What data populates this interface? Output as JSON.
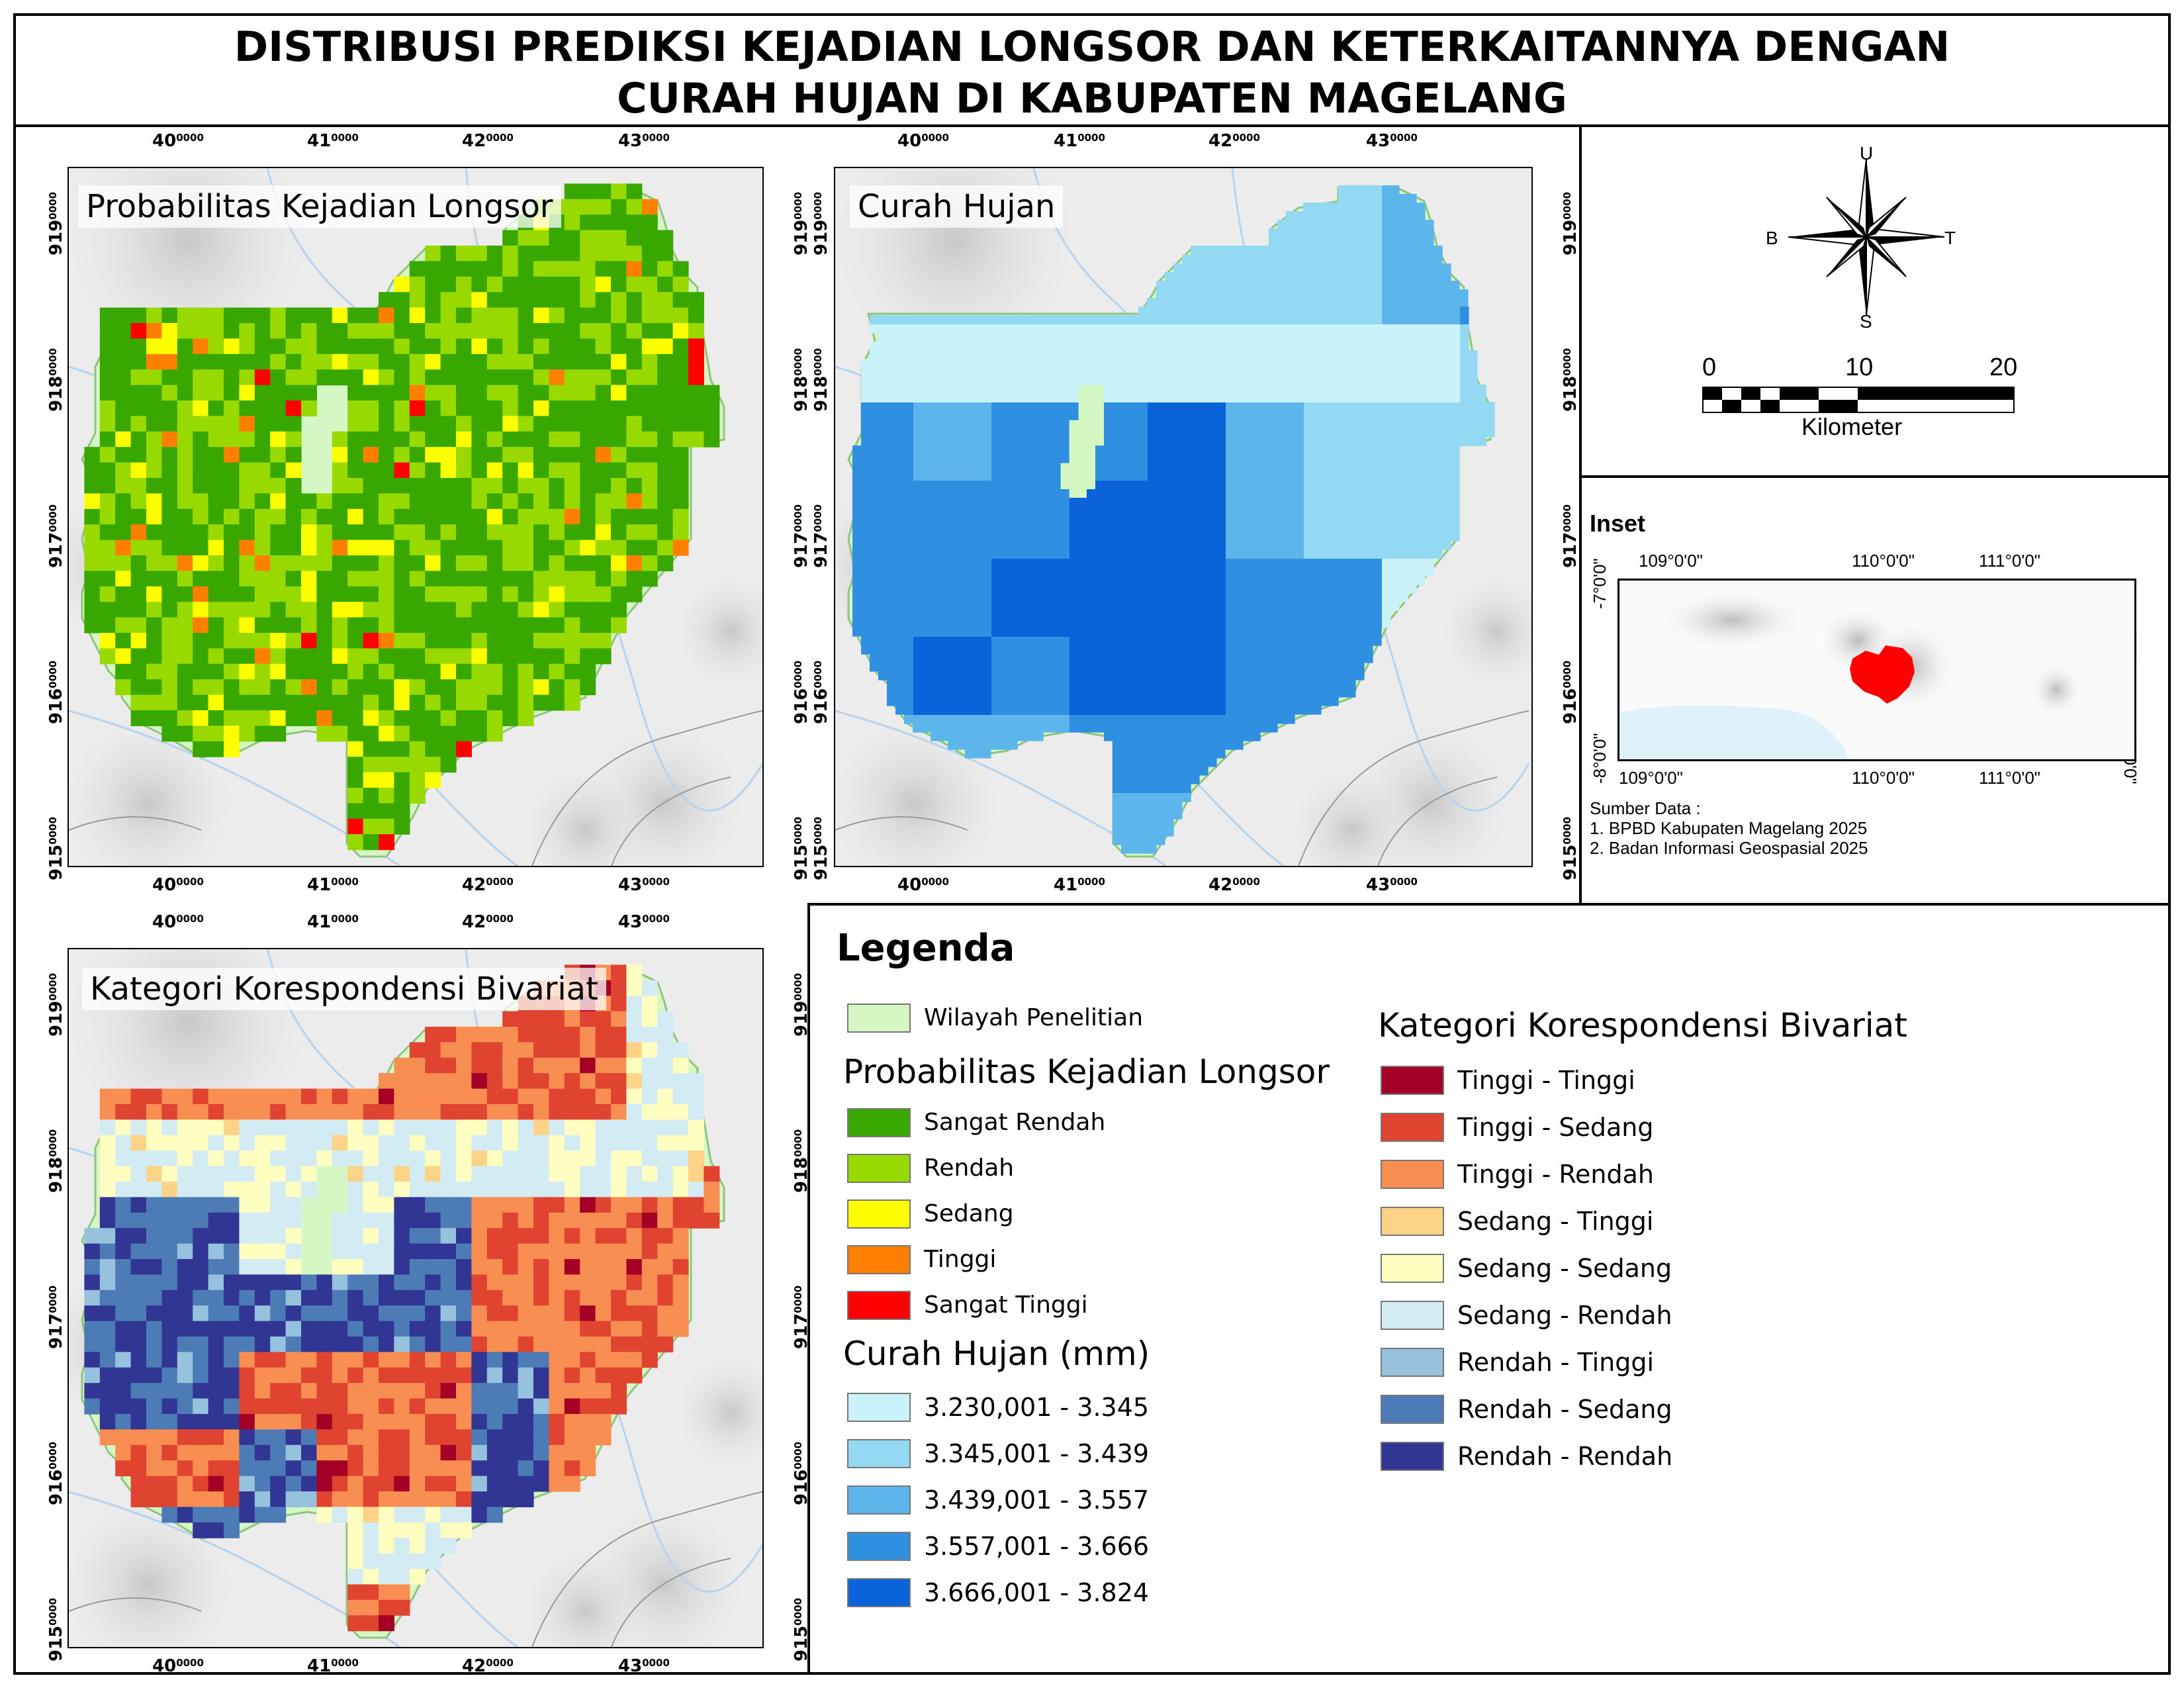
{
  "title": {
    "line1": "DISTRIBUSI PREDIKSI KEJADIAN LONGSOR DAN KETERKAITANNYA DENGAN",
    "line2": "CURAH HUJAN DI KABUPATEN MAGELANG"
  },
  "maps": {
    "landslide": {
      "label": "Probabilitas Kejadian Longsor"
    },
    "rainfall": {
      "label": "Curah Hujan"
    },
    "bivariate": {
      "label": "Kategori Korespondensi Bivariat"
    }
  },
  "axes": {
    "x_ticks": [
      {
        "main": "40",
        "sup": "0000"
      },
      {
        "main": "41",
        "sup": "0000"
      },
      {
        "main": "42",
        "sup": "0000"
      },
      {
        "main": "43",
        "sup": "0000"
      }
    ],
    "y_ticks": [
      {
        "main": "919",
        "sup": "0000"
      },
      {
        "main": "918",
        "sup": "0000"
      },
      {
        "main": "917",
        "sup": "0000"
      },
      {
        "main": "916",
        "sup": "0000"
      },
      {
        "main": "915",
        "sup": "0000"
      }
    ]
  },
  "compass": {
    "north": "U",
    "south": "S",
    "west": "B",
    "east": "T"
  },
  "scalebar": {
    "labels": [
      "0",
      "10",
      "20"
    ],
    "unit": "Kilometer"
  },
  "inset": {
    "title": "Inset",
    "top_lon": [
      "109°0'0\"",
      "110°0'0\"",
      "111°0'0\""
    ],
    "bottom_lon": [
      "109°0'0\"",
      "110°0'0\"",
      "111°0'0\""
    ],
    "lat_top": "-7°0'0\"",
    "lat_bottom": "-8°0'0\""
  },
  "sources": {
    "heading": "Sumber Data :",
    "items": [
      "1. BPBD Kabupaten Magelang 2025",
      "2. Badan Informasi Geospasial 2025"
    ]
  },
  "legend": {
    "title": "Legenda",
    "study_area": {
      "label": "Wilayah Penelitian",
      "color": "#d4f7c4"
    },
    "landslide": {
      "heading": "Probabilitas Kejadian Longsor",
      "items": [
        {
          "label": "Sangat Rendah",
          "color": "#38a800"
        },
        {
          "label": "Rendah",
          "color": "#98d900"
        },
        {
          "label": "Sedang",
          "color": "#ffff00"
        },
        {
          "label": "Tinggi",
          "color": "#ff8000"
        },
        {
          "label": "Sangat Tinggi",
          "color": "#ff0000"
        }
      ]
    },
    "rainfall": {
      "heading": "Curah Hujan (mm)",
      "items": [
        {
          "label": "3.230,001 - 3.345",
          "color": "#c9f2fb"
        },
        {
          "label": "3.345,001 - 3.439",
          "color": "#93d9f4"
        },
        {
          "label": "3.439,001 - 3.557",
          "color": "#5cb6ec"
        },
        {
          "label": "3.557,001 - 3.666",
          "color": "#2f8fe0"
        },
        {
          "label": "3.666,001 - 3.824",
          "color": "#0a63d8"
        }
      ]
    },
    "bivariate": {
      "heading": "Kategori Korespondensi Bivariat",
      "items": [
        {
          "label": "Tinggi - Tinggi",
          "color": "#a50026"
        },
        {
          "label": "Tinggi - Sedang",
          "color": "#e0432f"
        },
        {
          "label": "Tinggi - Rendah",
          "color": "#f98e52"
        },
        {
          "label": "Sedang - Tinggi",
          "color": "#fdd387"
        },
        {
          "label": "Sedang - Sedang",
          "color": "#fefec0"
        },
        {
          "label": "Sedang - Rendah",
          "color": "#d3ebf3"
        },
        {
          "label": "Rendah - Tinggi",
          "color": "#96c2dd"
        },
        {
          "label": "Rendah - Sedang",
          "color": "#4c7bb6"
        },
        {
          "label": "Rendah - Rendah",
          "color": "#313695"
        }
      ]
    }
  }
}
